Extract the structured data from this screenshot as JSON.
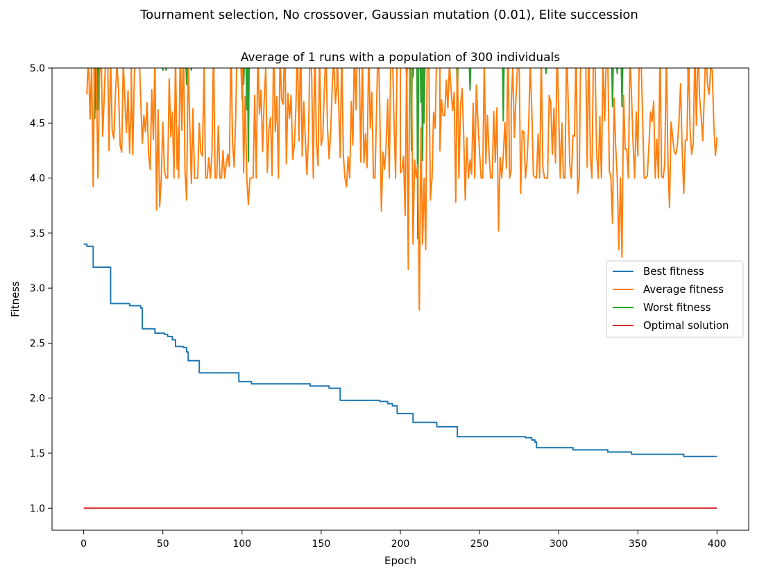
{
  "chart_data": {
    "type": "line",
    "suptitle": "Tournament selection, No crossover, Gaussian mutation (0.01), Elite succession",
    "title": "Average of 1 runs with a population of 300 individuals",
    "xlabel": "Epoch",
    "ylabel": "Fitness",
    "xlim": [
      -20,
      420
    ],
    "ylim": [
      0.8,
      5.0
    ],
    "xticks": [
      0,
      50,
      100,
      150,
      200,
      250,
      300,
      350,
      400
    ],
    "yticks": [
      1.0,
      1.5,
      2.0,
      2.5,
      3.0,
      3.5,
      4.0,
      4.5,
      5.0
    ],
    "grid": false,
    "legend_position": "center-right",
    "series": [
      {
        "name": "Best fitness",
        "color": "#1f77b4",
        "steps": [
          [
            0,
            3.4
          ],
          [
            2,
            3.38
          ],
          [
            6,
            3.19
          ],
          [
            17,
            2.86
          ],
          [
            29,
            2.84
          ],
          [
            36,
            2.82
          ],
          [
            37,
            2.63
          ],
          [
            45,
            2.59
          ],
          [
            51,
            2.58
          ],
          [
            53,
            2.56
          ],
          [
            56,
            2.53
          ],
          [
            58,
            2.47
          ],
          [
            63,
            2.46
          ],
          [
            65,
            2.42
          ],
          [
            66,
            2.34
          ],
          [
            73,
            2.23
          ],
          [
            98,
            2.15
          ],
          [
            106,
            2.13
          ],
          [
            143,
            2.11
          ],
          [
            155,
            2.09
          ],
          [
            162,
            1.98
          ],
          [
            187,
            1.97
          ],
          [
            192,
            1.95
          ],
          [
            195,
            1.93
          ],
          [
            198,
            1.86
          ],
          [
            208,
            1.78
          ],
          [
            223,
            1.74
          ],
          [
            236,
            1.65
          ],
          [
            279,
            1.64
          ],
          [
            283,
            1.62
          ],
          [
            285,
            1.6
          ],
          [
            286,
            1.55
          ],
          [
            309,
            1.53
          ],
          [
            331,
            1.51
          ],
          [
            346,
            1.49
          ],
          [
            379,
            1.47
          ],
          [
            400,
            1.47
          ]
        ]
      },
      {
        "name": "Average fitness",
        "color": "#ff7f0e",
        "segments": [
          {
            "x0": 2,
            "y0": 5.02,
            "x1": 30,
            "y1": 4.55,
            "dips": [
              [
                6,
                3.92
              ],
              [
                9,
                4.0
              ],
              [
                12,
                4.38
              ],
              [
                16,
                4.25
              ],
              [
                20,
                4.75
              ],
              [
                23,
                4.3
              ]
            ]
          },
          {
            "x0": 30,
            "y0": 4.55,
            "x1": 60,
            "y1": 4.1,
            "dips": [
              [
                44,
                4.35
              ],
              [
                46,
                3.71
              ],
              [
                48,
                3.74
              ],
              [
                54,
                4.9
              ],
              [
                56,
                4.6
              ]
            ]
          },
          {
            "x0": 60,
            "y0": 4.1,
            "x1": 100,
            "y1": 4.3,
            "dips": [
              [
                65,
                3.8
              ],
              [
                68,
                3.95
              ],
              [
                75,
                4.2
              ],
              [
                88,
                4.25
              ],
              [
                95,
                4.1
              ]
            ]
          },
          {
            "x0": 100,
            "y0": 4.3,
            "x1": 160,
            "y1": 4.5,
            "dips": [
              [
                104,
                3.76
              ],
              [
                112,
                4.8
              ],
              [
                123,
                4.0
              ],
              [
                138,
                4.2
              ],
              [
                150,
                4.3
              ]
            ]
          },
          {
            "x0": 160,
            "y0": 4.5,
            "x1": 200,
            "y1": 4.15,
            "dips": [
              [
                166,
                3.92
              ],
              [
                178,
                4.4
              ],
              [
                188,
                3.7
              ],
              [
                197,
                4.0
              ]
            ]
          },
          {
            "x0": 200,
            "y0": 4.15,
            "x1": 225,
            "y1": 4.4,
            "dips": [
              [
                203,
                3.66
              ],
              [
                205,
                3.17
              ],
              [
                208,
                3.4
              ],
              [
                212,
                2.8
              ],
              [
                214,
                3.4
              ],
              [
                216,
                3.35
              ],
              [
                219,
                3.8
              ]
            ]
          },
          {
            "x0": 225,
            "y0": 4.4,
            "x1": 270,
            "y1": 4.3,
            "dips": [
              [
                235,
                3.78
              ],
              [
                241,
                3.8
              ],
              [
                252,
                4.0
              ],
              [
                262,
                3.52
              ],
              [
                265,
                4.2
              ]
            ]
          },
          {
            "x0": 270,
            "y0": 4.3,
            "x1": 330,
            "y1": 4.2,
            "dips": [
              [
                276,
                3.86
              ],
              [
                290,
                4.1
              ],
              [
                302,
                4.5
              ],
              [
                312,
                3.86
              ],
              [
                320,
                4.2
              ]
            ]
          },
          {
            "x0": 330,
            "y0": 4.2,
            "x1": 400,
            "y1": 4.57,
            "dips": [
              [
                334,
                3.59
              ],
              [
                338,
                3.35
              ],
              [
                340,
                3.28
              ],
              [
                350,
                4.2
              ],
              [
                358,
                4.6
              ],
              [
                370,
                3.73
              ],
              [
                379,
                3.86
              ],
              [
                387,
                4.48
              ],
              [
                398,
                4.48
              ]
            ]
          }
        ]
      },
      {
        "name": "Worst fitness",
        "color": "#2ca02c",
        "base": 5.0,
        "dips": [
          [
            5,
            5.0
          ],
          [
            7,
            4.54
          ],
          [
            8,
            4.62
          ],
          [
            9,
            4.62
          ],
          [
            10,
            5.0
          ],
          [
            50,
            4.98
          ],
          [
            52,
            4.98
          ],
          [
            65,
            4.85
          ],
          [
            68,
            4.98
          ],
          [
            101,
            4.85
          ],
          [
            103,
            4.62
          ],
          [
            104,
            4.15
          ],
          [
            105,
            5.0
          ],
          [
            204,
            4.91
          ],
          [
            205,
            5.0
          ],
          [
            206,
            4.9
          ],
          [
            207,
            4.25
          ],
          [
            208,
            4.92
          ],
          [
            211,
            3.45
          ],
          [
            213,
            4.69
          ],
          [
            214,
            4.16
          ],
          [
            215,
            4.5
          ],
          [
            236,
            4.75
          ],
          [
            244,
            4.8
          ],
          [
            265,
            4.52
          ],
          [
            292,
            4.95
          ],
          [
            334,
            4.65
          ],
          [
            337,
            4.95
          ],
          [
            340,
            4.65
          ],
          [
            382,
            4.79
          ]
        ]
      },
      {
        "name": "Optimal solution",
        "color": "#d62728",
        "x": [
          0,
          400
        ],
        "y": [
          1.0,
          1.0
        ]
      }
    ]
  }
}
